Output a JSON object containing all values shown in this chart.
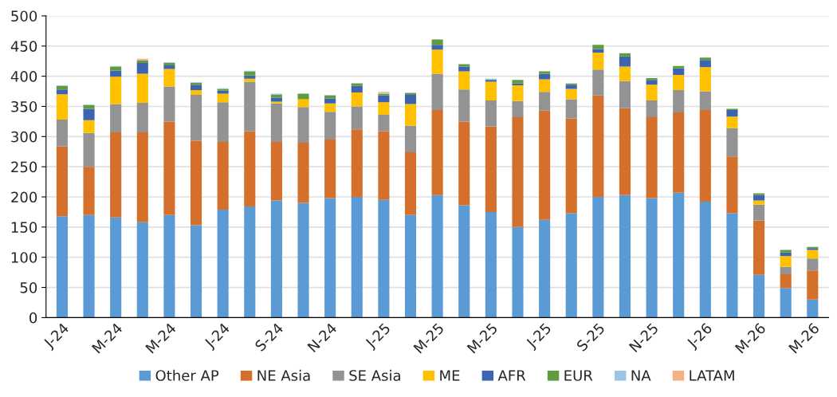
{
  "chart_data": {
    "type": "bar",
    "stacked": true,
    "categories": [
      "J-24",
      null,
      "M-24",
      null,
      "M-24",
      null,
      "J-24",
      null,
      "S-24",
      null,
      "N-24",
      null,
      "J-25",
      null,
      "M-25",
      null,
      "M-25",
      null,
      "J-25",
      null,
      "S-25",
      null,
      "N-25",
      null,
      "J-26",
      null,
      "M-26",
      null,
      "M-26"
    ],
    "series": [
      {
        "name": "Other AP",
        "color": "#5b9bd5",
        "values": [
          168,
          170,
          166,
          158,
          170,
          153,
          179,
          184,
          194,
          190,
          198,
          200,
          195,
          170,
          203,
          186,
          175,
          150,
          162,
          173,
          200,
          203,
          198,
          207,
          192,
          173,
          71,
          49,
          30
        ]
      },
      {
        "name": "NE Asia",
        "color": "#d4702b",
        "values": [
          116,
          80,
          141,
          149,
          155,
          140,
          112,
          125,
          97,
          100,
          97,
          112,
          114,
          104,
          141,
          139,
          142,
          182,
          181,
          157,
          168,
          144,
          134,
          133,
          152,
          94,
          90,
          23,
          48
        ]
      },
      {
        "name": "SE Asia",
        "color": "#939393",
        "values": [
          44,
          56,
          47,
          49,
          58,
          76,
          66,
          82,
          64,
          59,
          46,
          38,
          27,
          44,
          60,
          53,
          43,
          27,
          31,
          32,
          43,
          45,
          28,
          37,
          31,
          47,
          26,
          12,
          20
        ]
      },
      {
        "name": "ME",
        "color": "#ffc000",
        "values": [
          42,
          21,
          45,
          48,
          29,
          8,
          14,
          5,
          3,
          13,
          14,
          23,
          21,
          36,
          40,
          30,
          31,
          26,
          21,
          17,
          28,
          24,
          26,
          25,
          40,
          19,
          7,
          18,
          14
        ]
      },
      {
        "name": "AFR",
        "color": "#3c64b0",
        "values": [
          8,
          19,
          10,
          18,
          6,
          9,
          5,
          5,
          6,
          null,
          8,
          11,
          11,
          15,
          8,
          8,
          3,
          3,
          9,
          7,
          6,
          17,
          8,
          11,
          12,
          11,
          9,
          6,
          3
        ]
      },
      {
        "name": "EUR",
        "color": "#629a3f",
        "values": [
          6,
          6,
          7,
          4,
          4,
          3,
          3,
          7,
          5,
          9,
          5,
          4,
          3,
          3,
          9,
          4,
          1,
          6,
          4,
          2,
          7,
          5,
          3,
          4,
          4,
          2,
          3,
          4,
          2
        ]
      },
      {
        "name": "NA",
        "color": "#9dc3e6",
        "values": [
          1,
          1,
          1,
          0,
          1,
          1,
          1,
          1,
          2,
          0,
          1,
          1,
          1,
          1,
          0,
          null,
          1,
          0,
          0,
          0,
          0,
          0,
          0,
          0,
          0,
          0,
          0,
          0,
          0
        ]
      },
      {
        "name": "LATAM",
        "color": "#f4b183",
        "values": [
          0,
          0,
          0,
          3,
          0,
          0,
          0,
          0,
          0,
          0,
          0,
          0,
          2,
          0,
          0,
          0,
          0,
          0,
          0,
          0,
          0,
          0,
          0,
          0,
          0,
          0,
          0,
          0,
          0
        ]
      }
    ],
    "ylim": [
      0,
      500
    ],
    "yticks": [
      0,
      50,
      100,
      150,
      200,
      250,
      300,
      350,
      400,
      450,
      500
    ],
    "grid": "y",
    "legend": "bottom"
  }
}
